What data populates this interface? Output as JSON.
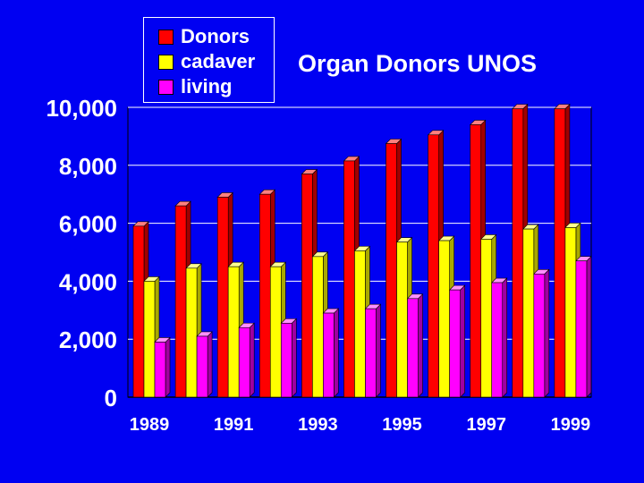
{
  "colors": {
    "background": "#0000f2",
    "series": [
      "#ff0000",
      "#ffff00",
      "#ff00ff"
    ],
    "series_side": [
      "#a00000",
      "#a8a800",
      "#a000a0"
    ],
    "series_top": [
      "#ff8080",
      "#ffff90",
      "#ff90ff"
    ],
    "plot_wall": "#0000f2",
    "gridline": "#ffffff",
    "text": "#ffffff"
  },
  "chart_data": {
    "type": "bar",
    "title": "Organ Donors UNOS",
    "xlabel": "",
    "ylabel": "",
    "ylim": [
      0,
      10000
    ],
    "yticks": [
      "0",
      "2,000",
      "4,000",
      "6,000",
      "8,000",
      "10,000"
    ],
    "ytick_values": [
      0,
      2000,
      4000,
      6000,
      8000,
      10000
    ],
    "categories": [
      "1989",
      "1990",
      "1991",
      "1992",
      "1993",
      "1994",
      "1995",
      "1996",
      "1997",
      "1998",
      "1999"
    ],
    "xtick_labels": [
      "1989",
      "",
      "1991",
      "",
      "1993",
      "",
      "1995",
      "",
      "1997",
      "",
      "1999"
    ],
    "grid": true,
    "legend_position": "top-left",
    "series": [
      {
        "name": "Donors",
        "values": [
          5900,
          6600,
          6900,
          7000,
          7700,
          8150,
          8750,
          9050,
          9400,
          9950,
          9950
        ]
      },
      {
        "name": "cadaver",
        "values": [
          4000,
          4450,
          4500,
          4500,
          4850,
          5050,
          5350,
          5400,
          5450,
          5800,
          5850
        ]
      },
      {
        "name": "living",
        "values": [
          1900,
          2100,
          2400,
          2550,
          2900,
          3050,
          3400,
          3700,
          3950,
          4250,
          4700
        ]
      }
    ]
  }
}
